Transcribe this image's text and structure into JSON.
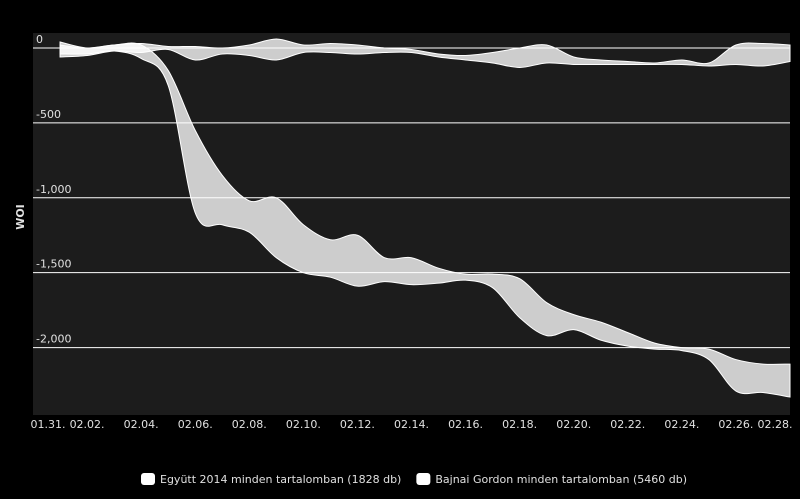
{
  "chart_data": {
    "type": "arearange",
    "y_label": "WOI",
    "categories": [
      null,
      null,
      "02.02.",
      null,
      "02.04.",
      null,
      "02.06.",
      null,
      "02.08.",
      null,
      "02.10.",
      null,
      "02.12.",
      null,
      "02.14.",
      null,
      "02.16.",
      null,
      "02.18.",
      null,
      "02.20.",
      null,
      "02.22.",
      null,
      "02.24.",
      null,
      "02.26.",
      null,
      "02.28."
    ],
    "first_label": "01.31.",
    "ylim": [
      -2450,
      100
    ],
    "yticks": [
      0,
      -500,
      {
        "value": -1000,
        "label": "-1,000"
      },
      {
        "value": -1500,
        "label": "-1,500"
      },
      {
        "value": -2000,
        "label": "-2,000"
      }
    ],
    "grid": true,
    "legend": "bottom",
    "series": [
      {
        "name": "Együtt 2014 minden tartalomban (1828 db)",
        "color": "#ffffff",
        "high": [
          null,
          40,
          0,
          20,
          30,
          10,
          10,
          0,
          20,
          60,
          20,
          30,
          20,
          0,
          -10,
          -40,
          -50,
          -30,
          0,
          20,
          -60,
          -80,
          -90,
          -100,
          -80,
          -100,
          20,
          30,
          20
        ],
        "low": [
          null,
          -60,
          -50,
          -20,
          -30,
          -10,
          -80,
          -40,
          -50,
          -80,
          -30,
          -30,
          -40,
          -30,
          -30,
          -60,
          -80,
          -100,
          -130,
          -100,
          -110,
          -110,
          -110,
          -110,
          -110,
          -120,
          -110,
          -120,
          -90
        ]
      },
      {
        "name": "Bajnai Gordon minden tartalomban (5460 db)",
        "color": "#ffffff",
        "high": [
          null,
          20,
          0,
          20,
          20,
          -150,
          -550,
          -850,
          -1020,
          -1000,
          -1180,
          -1280,
          -1250,
          -1400,
          -1400,
          -1470,
          -1510,
          -1510,
          -1540,
          -1700,
          -1780,
          -1830,
          -1900,
          -1970,
          -2000,
          -2010,
          -2080,
          -2110,
          -2110
        ],
        "low": [
          null,
          -40,
          -40,
          -20,
          -70,
          -250,
          -1100,
          -1180,
          -1230,
          -1400,
          -1500,
          -1530,
          -1590,
          -1560,
          -1580,
          -1570,
          -1550,
          -1600,
          -1800,
          -1920,
          -1880,
          -1950,
          -1990,
          -2010,
          -2020,
          -2080,
          -2290,
          -2300,
          -2330
        ]
      }
    ]
  }
}
